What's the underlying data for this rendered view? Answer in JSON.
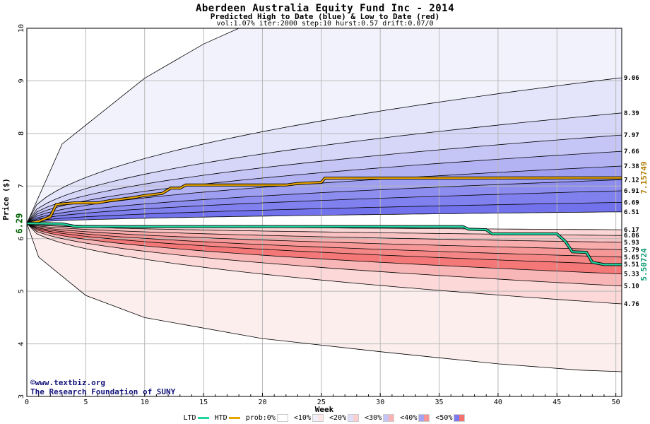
{
  "title": "Aberdeen Australia Equity Fund Inc - 2014",
  "subtitle": "Predicted High to Date (blue) &  Low to Date (red)",
  "params": "vol:1.07% iter:2000 step:10 hurst:0.57 drift:0.07/0",
  "credit": {
    "line1": "©www.textbiz.org",
    "line2": "The Research Foundation of SUNY"
  },
  "colors": {
    "htd": "#e8a500",
    "ltd": "#1fd6a0",
    "blue_band": "#7474ee",
    "red_band": "#f67474"
  },
  "legend": {
    "ltd": "LTD",
    "htd": "HTD",
    "prob0": "prob:0%",
    "lt10": "<10%",
    "lt20": "<20%",
    "lt30": "<30%",
    "lt40": "<40%",
    "lt50": "<50%"
  },
  "chart_data": {
    "type": "area",
    "title": "Aberdeen Australia Equity Fund Inc - 2014",
    "subtitle": "Predicted High to Date (blue) &  Low to Date (red)",
    "xlabel": "Week",
    "ylabel": "Price ($)",
    "xlim": [
      0,
      50.5
    ],
    "ylim": [
      3,
      10
    ],
    "x_ticks": [
      0,
      5,
      10,
      15,
      20,
      25,
      30,
      35,
      40,
      45,
      50
    ],
    "y_ticks": [
      3,
      4,
      5,
      6,
      7,
      8,
      9,
      10
    ],
    "grid": true,
    "start_price": 6.29,
    "start_label": "6.29",
    "high_quantiles": [
      {
        "end": 9.06,
        "label": "9.06"
      },
      {
        "end": 8.39,
        "label": "8.39"
      },
      {
        "end": 7.97,
        "label": "7.97"
      },
      {
        "end": 7.66,
        "label": "7.66"
      },
      {
        "end": 7.38,
        "label": "7.38"
      },
      {
        "end": 7.12,
        "label": "7.12"
      },
      {
        "end": 6.91,
        "label": "6.91"
      },
      {
        "end": 6.69,
        "label": "6.69"
      },
      {
        "end": 6.51,
        "label": "6.51"
      }
    ],
    "low_quantiles": [
      {
        "end": 6.17,
        "label": "6.17"
      },
      {
        "end": 6.06,
        "label": "6.06"
      },
      {
        "end": 5.93,
        "label": "5.93"
      },
      {
        "end": 5.79,
        "label": "5.79"
      },
      {
        "end": 5.65,
        "label": "5.65"
      },
      {
        "end": 5.51,
        "label": "5.51"
      },
      {
        "end": 5.33,
        "label": "5.33"
      },
      {
        "end": 5.1,
        "label": "5.10"
      },
      {
        "end": 4.76,
        "label": "4.76"
      }
    ],
    "outer_high": {
      "points": [
        [
          0,
          6.29
        ],
        [
          3,
          7.8
        ],
        [
          10,
          9.05
        ],
        [
          15,
          9.7
        ],
        [
          18,
          10.0
        ]
      ]
    },
    "outer_low": {
      "points": [
        [
          0,
          6.29
        ],
        [
          1,
          5.65
        ],
        [
          5,
          4.92
        ],
        [
          10,
          4.5
        ],
        [
          20,
          4.1
        ],
        [
          30,
          3.85
        ],
        [
          40,
          3.62
        ],
        [
          47,
          3.5
        ],
        [
          50.5,
          3.47
        ]
      ]
    },
    "series": [
      {
        "name": "HTD",
        "end_label": "7.15749",
        "points": [
          [
            0,
            6.29
          ],
          [
            1,
            6.33
          ],
          [
            2,
            6.42
          ],
          [
            2.5,
            6.65
          ],
          [
            4,
            6.68
          ],
          [
            6,
            6.68
          ],
          [
            7,
            6.72
          ],
          [
            9,
            6.78
          ],
          [
            10,
            6.82
          ],
          [
            11.5,
            6.86
          ],
          [
            12.2,
            6.96
          ],
          [
            13,
            6.96
          ],
          [
            13.5,
            7.02
          ],
          [
            16,
            7.02
          ],
          [
            22,
            7.02
          ],
          [
            23,
            7.05
          ],
          [
            25,
            7.07
          ],
          [
            25.3,
            7.15
          ],
          [
            50.5,
            7.157
          ]
        ]
      },
      {
        "name": "LTD",
        "end_label": "5.50724",
        "points": [
          [
            0,
            6.29
          ],
          [
            3,
            6.28
          ],
          [
            4.2,
            6.23
          ],
          [
            10,
            6.23
          ],
          [
            37,
            6.23
          ],
          [
            37.5,
            6.18
          ],
          [
            39,
            6.17
          ],
          [
            39.5,
            6.09
          ],
          [
            45,
            6.09
          ],
          [
            45.7,
            5.95
          ],
          [
            46.3,
            5.75
          ],
          [
            47.5,
            5.74
          ],
          [
            48,
            5.55
          ],
          [
            49,
            5.50724
          ],
          [
            50.5,
            5.50724
          ]
        ]
      }
    ]
  }
}
